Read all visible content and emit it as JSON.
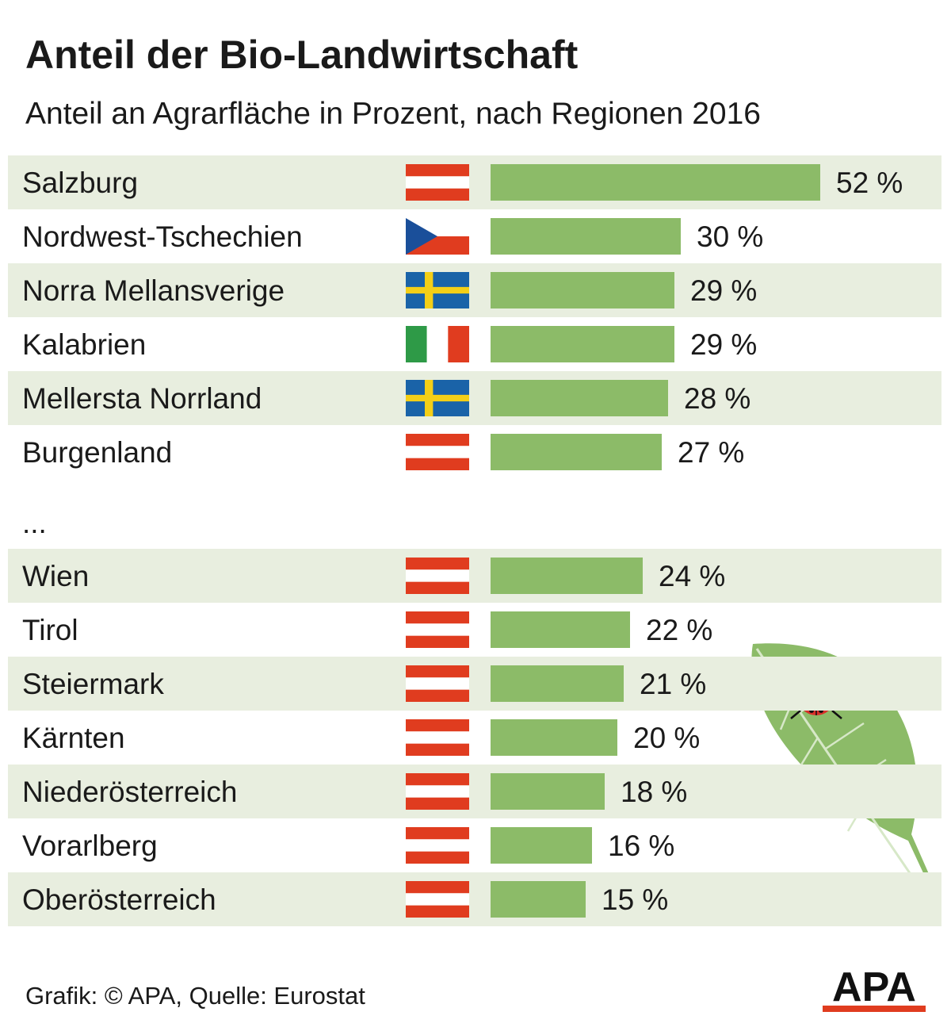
{
  "header": {
    "title": "Anteil der Bio-Landwirtschaft",
    "subtitle": "Anteil an Agrarfläche in Prozent, nach Regionen 2016"
  },
  "chart_data": {
    "type": "bar",
    "orientation": "horizontal",
    "unit": "%",
    "colors": {
      "bar": "#8cbb68",
      "row_stripe": "#e8eedf",
      "flag_austria_red": "#e03c1f",
      "flag_italy_green": "#2e9a47",
      "flag_sweden_blue": "#1a63a8",
      "flag_sweden_yellow": "#f4cf17",
      "flag_czech_blue": "#1a4f9a",
      "leaf": "#8cbb68",
      "ladybug": "#d8312a"
    },
    "group_separator": "...",
    "groups": [
      {
        "rows": [
          {
            "label": "Salzburg",
            "value": 52,
            "value_label": "52 %",
            "flag": "austria-flag-icon"
          },
          {
            "label": "Nordwest-Tschechien",
            "value": 30,
            "value_label": "30 %",
            "flag": "czech-flag-icon"
          },
          {
            "label": "Norra Mellansverige",
            "value": 29,
            "value_label": "29 %",
            "flag": "sweden-flag-icon"
          },
          {
            "label": "Kalabrien",
            "value": 29,
            "value_label": "29 %",
            "flag": "italy-flag-icon"
          },
          {
            "label": "Mellersta Norrland",
            "value": 28,
            "value_label": "28 %",
            "flag": "sweden-flag-icon"
          },
          {
            "label": "Burgenland",
            "value": 27,
            "value_label": "27 %",
            "flag": "austria-flag-icon"
          }
        ]
      },
      {
        "rows": [
          {
            "label": "Wien",
            "value": 24,
            "value_label": "24 %",
            "flag": "austria-flag-icon"
          },
          {
            "label": "Tirol",
            "value": 22,
            "value_label": "22 %",
            "flag": "austria-flag-icon"
          },
          {
            "label": "Steiermark",
            "value": 21,
            "value_label": "21 %",
            "flag": "austria-flag-icon"
          },
          {
            "label": "Kärnten",
            "value": 20,
            "value_label": "20 %",
            "flag": "austria-flag-icon"
          },
          {
            "label": "Niederösterreich",
            "value": 18,
            "value_label": "18 %",
            "flag": "austria-flag-icon"
          },
          {
            "label": "Vorarlberg",
            "value": 16,
            "value_label": "16 %",
            "flag": "austria-flag-icon"
          },
          {
            "label": "Oberösterreich",
            "value": 15,
            "value_label": "15 %",
            "flag": "austria-flag-icon"
          }
        ]
      }
    ],
    "xlim": [
      0,
      52
    ],
    "grid": false,
    "legend": "none",
    "decoration": [
      "leaf-icon",
      "ladybug-icon"
    ]
  },
  "footer": {
    "source": "Grafik: © APA, Quelle: Eurostat",
    "logo_text": "APA"
  }
}
